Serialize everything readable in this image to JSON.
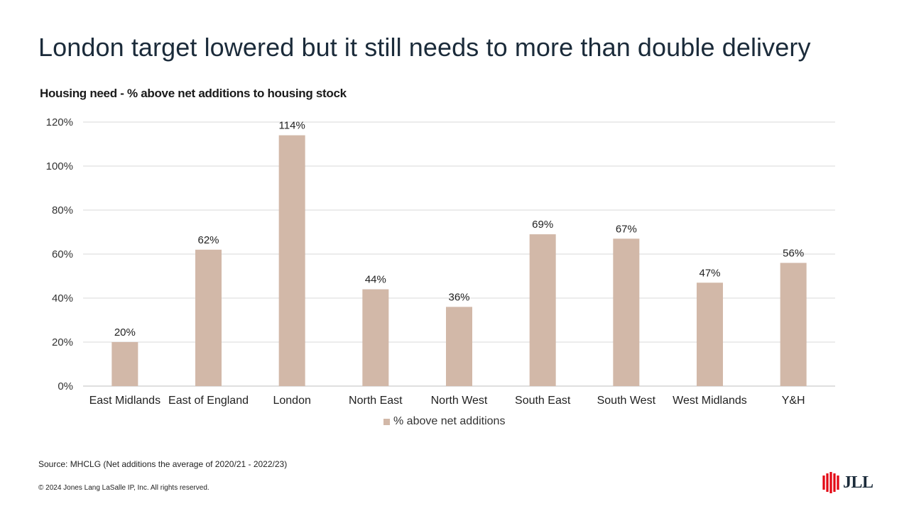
{
  "slide": {
    "title": "London target lowered but it still needs to more than double delivery",
    "source": "Source: MHCLG (Net additions the average of 2020/21 - 2022/23)",
    "copyright": "© 2024 Jones Lang LaSalle IP,  Inc.  All rights reserved.",
    "logo_text": "JLL"
  },
  "colors": {
    "bar": "#d2b8a8",
    "grid": "#d9d9d9",
    "axis": "#bfbfbf",
    "logo_red": "#e30613"
  },
  "chart_data": {
    "type": "bar",
    "title": "Housing need - % above net additions to housing stock",
    "categories": [
      "East Midlands",
      "East of England",
      "London",
      "North East",
      "North West",
      "South East",
      "South West",
      "West Midlands",
      "Y&H"
    ],
    "series": [
      {
        "name": "% above net additions",
        "values": [
          20,
          62,
          114,
          44,
          36,
          69,
          67,
          47,
          56
        ],
        "labels": [
          "20%",
          "62%",
          "114%",
          "44%",
          "36%",
          "69%",
          "67%",
          "47%",
          "56%"
        ]
      }
    ],
    "yticks": [
      "0%",
      "20%",
      "40%",
      "60%",
      "80%",
      "100%",
      "120%"
    ],
    "ylim": [
      0,
      120
    ],
    "grid": true,
    "legend": "bottom"
  }
}
